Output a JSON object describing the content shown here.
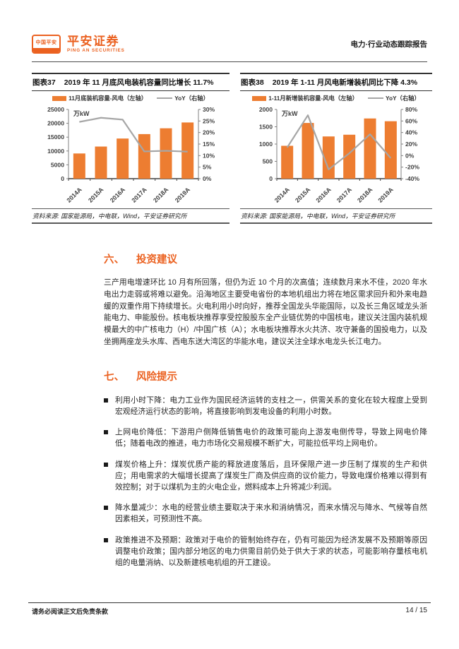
{
  "colors": {
    "accent": "#eb6120",
    "bar": "#ED7D31",
    "line": "#A6A6A6",
    "axis_text": "#404040",
    "axis_line": "#808080",
    "baseline": "#404040"
  },
  "header": {
    "logo_badge_text": "中国平安",
    "logo_badge_strip": "保险·银行·投资",
    "brand_name": "平安证券",
    "brand_sub": "PING AN SECURITIES",
    "report_type": "电力·行业动态跟踪报告"
  },
  "figures": [
    {
      "label": "图表37",
      "title": "2019 年 11 月底风电装机容量同比增长 11.7%",
      "source": "资料来源: 国家能源局，中电联，Wind，平安证券研究所",
      "chart_data": {
        "type": "bar",
        "unit_label": "万kW",
        "categories": [
          "2014A",
          "2015A",
          "2016A",
          "2017A",
          "2018A",
          "2019A"
        ],
        "series": [
          {
            "name": "11月底装机容量-风电（左轴）",
            "kind": "bar",
            "axis": "left",
            "values": [
              9100,
              11600,
              14500,
              16100,
              18200,
              20300
            ]
          },
          {
            "name": "YoY（右轴）",
            "kind": "line",
            "axis": "right",
            "values": [
              24.6,
              26.4,
              25.6,
              11.8,
              12.1,
              11.7
            ]
          }
        ],
        "left_axis": {
          "min": 0,
          "max": 25000,
          "step": 5000,
          "suffix": ""
        },
        "right_axis": {
          "min": 0,
          "max": 30,
          "step": 5,
          "suffix": "%"
        },
        "legend_position": "top",
        "grid": false
      }
    },
    {
      "label": "图表38",
      "title": "2019 年 1-11 月风电新增装机同比下降 4.3%",
      "source": "资料来源: 国家能源局，中电联，Wind，平安证券研究所",
      "chart_data": {
        "type": "bar",
        "unit_label": "万kW",
        "categories": [
          "2014A",
          "2015A",
          "2016A",
          "2017A",
          "2018A",
          "2019A"
        ],
        "series": [
          {
            "name": "1-11月新增装机容量-风电（左轴）",
            "kind": "bar",
            "axis": "left",
            "values": [
              950,
              1610,
              1220,
              1270,
              1740,
              1660
            ]
          },
          {
            "name": "YoY（右轴）",
            "kind": "line",
            "axis": "right",
            "values": [
              14,
              70,
              -24,
              4,
              37,
              -4.3
            ]
          }
        ],
        "left_axis": {
          "min": 0,
          "max": 2000,
          "step": 500,
          "suffix": ""
        },
        "right_axis": {
          "min": -40,
          "max": 80,
          "step": 20,
          "suffix": "%"
        },
        "legend_position": "top",
        "grid": false
      }
    }
  ],
  "sections": [
    {
      "number": "六、",
      "title": "投资建议",
      "paragraph": "三产用电增速环比 10 月有所回落，但仍为近 10 个月的次高值；连续数月来水不佳，2020 年水电出力走弱或将难以避免。沿海地区主要受电省份的本地机组出力将在地区需求回升和外来电趋缓的双重作用下持续增长。火电利用小时向好，推荐全国龙头华能国际，以及长三角区域龙头浙能电力、申能股份。核电板块推荐享受控股股东全产业链优势的中国核电，建议关注国内装机规模最大的中广核电力（H）/中国广核（A）；水电板块推荐水火共济、攻守兼备的国投电力，以及坐拥两座龙头水库、西电东送大湾区的华能水电，建议关注全球水电龙头长江电力。"
    },
    {
      "number": "七、",
      "title": "风险提示",
      "bullets": [
        "利用小时下降：电力工业作为国民经济运转的支柱之一，供需关系的变化在较大程度上受到宏观经济运行状态的影响，将直接影响到发电设备的利用小时数。",
        "上网电价降低：下游用户侧降低销售电价的政策可能向上游发电侧传导，导致上网电价降低；随着电改的推进，电力市场化交易规模不断扩大，可能拉低平均上网电价。",
        "煤炭价格上升：煤炭优质产能的释放进度落后，且环保限产进一步压制了煤炭的生产和供应；用电需求的大幅增长提高了煤炭生厂商及供应商的议价能力，导致电煤价格难以得到有效控制；对于以煤机为主的火电企业，燃料成本上升将减少利润。",
        "降水量减少：水电的经营业绩主要取决于来水和消纳情况，而来水情况与降水、气候等自然因素相关，可预测性不高。",
        "政策推进不及预期：政策对于电价的管制始终存在，仍有可能因为经济发展不及预期等原因调整电价政策；国内部分地区的电力供需目前仍处于供大于求的状态，可能影响存量核电机组的电量消纳、以及新建核电机组的开工建设。"
      ]
    }
  ],
  "footer": {
    "disclaimer": "请务必阅读正文后免责条款",
    "page": "14 / 15"
  }
}
